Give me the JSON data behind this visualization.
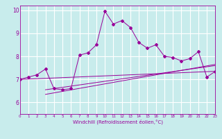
{
  "title": "",
  "xlabel": "Windchill (Refroidissement éolien,°C)",
  "ylabel": "",
  "bg_color": "#c8ecec",
  "line_color": "#990099",
  "grid_color": "#ffffff",
  "xlim": [
    0,
    23
  ],
  "ylim": [
    5.5,
    10.2
  ],
  "yticks": [
    6,
    7,
    8,
    9,
    10
  ],
  "xticks": [
    0,
    1,
    2,
    3,
    4,
    5,
    6,
    7,
    8,
    9,
    10,
    11,
    12,
    13,
    14,
    15,
    16,
    17,
    18,
    19,
    20,
    21,
    22,
    23
  ],
  "series": [
    [
      0,
      7.0
    ],
    [
      1,
      7.1
    ],
    [
      2,
      7.2
    ],
    [
      3,
      7.45
    ],
    [
      4,
      6.6
    ],
    [
      5,
      6.55
    ],
    [
      6,
      6.6
    ],
    [
      7,
      8.05
    ],
    [
      8,
      8.15
    ],
    [
      9,
      8.5
    ],
    [
      10,
      9.95
    ],
    [
      11,
      9.4
    ],
    [
      12,
      9.55
    ],
    [
      13,
      9.25
    ],
    [
      14,
      8.6
    ],
    [
      15,
      8.35
    ],
    [
      16,
      8.5
    ],
    [
      17,
      8.0
    ],
    [
      18,
      7.95
    ],
    [
      19,
      7.8
    ],
    [
      20,
      7.9
    ],
    [
      21,
      8.2
    ],
    [
      22,
      7.1
    ],
    [
      23,
      7.35
    ]
  ],
  "line2": [
    [
      0,
      7.0
    ],
    [
      23,
      7.35
    ]
  ],
  "line3": [
    [
      3,
      6.55
    ],
    [
      23,
      7.6
    ]
  ],
  "line4": [
    [
      3,
      6.35
    ],
    [
      23,
      7.65
    ]
  ]
}
